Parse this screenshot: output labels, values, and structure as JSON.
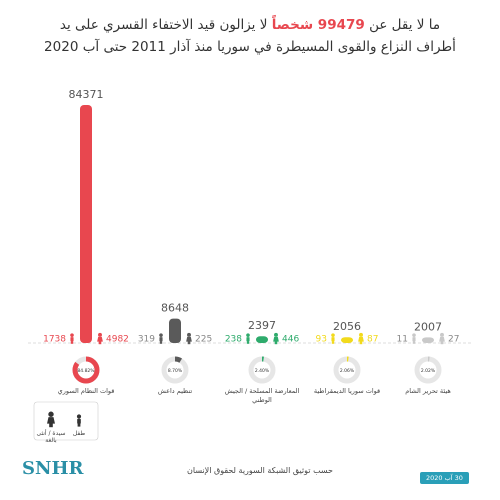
{
  "chart_data": {
    "type": "bar",
    "title": {
      "start": "ما لا يقل عن",
      "highlight": "99479 شخصاً",
      "end": "لا يزالون قيد الاختفاء القسري على يد",
      "line2": "أطراف النزاع والقوى المسيطرة في سوريا منذ آذار 2011 حتى آب 2020"
    },
    "categories": [
      "قوات النظام السوري",
      "تنظيم داعش",
      "المعارضة المسلحة / الجيش الوطني",
      "قوات سوريا الديمقراطية",
      "هيئة تحرير الشام"
    ],
    "values": [
      84371,
      8648,
      2397,
      2056,
      2007
    ],
    "colors": [
      "#e8474f",
      "#5a5a5a",
      "#2eab6c",
      "#f2da1c",
      "#c9c9c9"
    ],
    "series": [
      {
        "name": "طفل",
        "values": [
          1738,
          319,
          238,
          93,
          11
        ]
      },
      {
        "name": "سيدة / أنثى بالغة",
        "values": [
          4982,
          225,
          446,
          87,
          27
        ]
      }
    ],
    "shares": [
      84.82,
      8.7,
      2.4,
      2.06,
      2.02
    ],
    "share_labels": [
      "84.82%",
      "8.70%",
      "2.40%",
      "2.06%",
      "2.02%"
    ],
    "source": "حسب توثيق الشبكة السورية لحقوق الإنسان",
    "brand": "SNHR",
    "date": "30 آب 2020"
  }
}
